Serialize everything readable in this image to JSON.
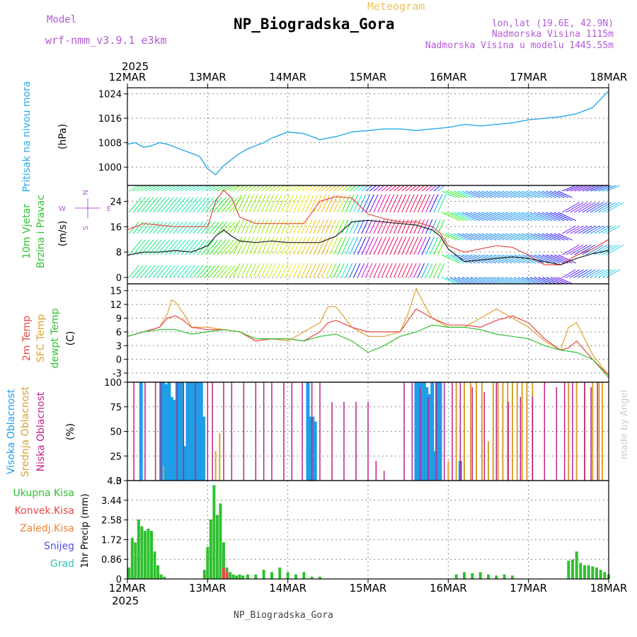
{
  "header": {
    "model_label": "Model",
    "model_version": "wrf-nmm_v3.9.1 e3km",
    "meteogram_label": "Meteogram",
    "station_title": "NP_Biogradska_Gora",
    "coords": "lon,lat (19.6E, 42.9N)",
    "elevation": "Nadmorska Visina 1115m",
    "model_elevation": "Nadmorska Visina u modelu 1445.55m",
    "footer_title": "NP_Biogradska_Gora",
    "watermark": "made by Angel"
  },
  "colors": {
    "pressure": "#29a9e6",
    "wind_speed": "#222222",
    "wind_gust": "#e84545",
    "t2m": "#e84545",
    "sfc": "#e0a030",
    "dewpt": "#30c030",
    "high_cloud": "#1e9ee6",
    "mid_cloud": "#d8a030",
    "low_cloud": "#c0208a",
    "total_precip": "#30c030",
    "conv_precip": "#e84545",
    "frz_precip": "#f08030",
    "snow": "#5050e0",
    "grad": "#30c0b0",
    "ylabel_purple": "#b25bd6"
  },
  "chart_data": [
    {
      "type": "line",
      "id": "pressure",
      "ylabel_name": "Pritisak na nivou mora",
      "ylabel_unit": "(hPa)",
      "year_label": "2025",
      "x_labels": [
        "12MAR",
        "13MAR",
        "14MAR",
        "15MAR",
        "16MAR",
        "17MAR",
        "18MAR"
      ],
      "ylim": [
        994,
        1026
      ],
      "yticks": [
        1000,
        1008,
        1016,
        1024
      ],
      "series": [
        {
          "name": "MSLP",
          "x": [
            0,
            0.1,
            0.2,
            0.3,
            0.4,
            0.5,
            0.6,
            0.7,
            0.8,
            0.9,
            1.0,
            1.1,
            1.2,
            1.3,
            1.4,
            1.5,
            1.6,
            1.7,
            1.8,
            1.9,
            2.0,
            2.2,
            2.4,
            2.6,
            2.8,
            3.0,
            3.2,
            3.4,
            3.6,
            3.8,
            4.0,
            4.2,
            4.4,
            4.6,
            4.8,
            5.0,
            5.2,
            5.4,
            5.6,
            5.8,
            6.0
          ],
          "values": [
            1007.5,
            1008.0,
            1006.5,
            1007.0,
            1008.0,
            1007.5,
            1006.5,
            1005.5,
            1004.5,
            1003.5,
            999.5,
            997.5,
            1000.5,
            1002.5,
            1004.5,
            1006.0,
            1007.0,
            1008.0,
            1009.5,
            1010.5,
            1011.5,
            1011.0,
            1009.0,
            1010.0,
            1011.5,
            1012.0,
            1012.5,
            1012.5,
            1012.0,
            1012.5,
            1013.0,
            1014.0,
            1013.5,
            1014.0,
            1014.5,
            1015.5,
            1016.0,
            1016.5,
            1017.5,
            1019.5,
            1025.0
          ]
        }
      ]
    },
    {
      "type": "line",
      "id": "wind",
      "ylabel_name1": "10m Vjetar",
      "ylabel_name2": "Brzina i Pravac",
      "ylabel_unit": "(m/s)",
      "compass": {
        "n": "N",
        "s": "S",
        "w": "W",
        "e": "E"
      },
      "ylim": [
        -2,
        29
      ],
      "yticks": [
        0,
        8,
        16,
        24
      ],
      "series": [
        {
          "name": "Speed",
          "x": [
            0,
            0.2,
            0.4,
            0.6,
            0.8,
            0.9,
            1.0,
            1.1,
            1.2,
            1.3,
            1.4,
            1.6,
            1.8,
            2.0,
            2.2,
            2.4,
            2.6,
            2.8,
            3.0,
            3.2,
            3.4,
            3.6,
            3.8,
            3.9,
            4.0,
            4.2,
            4.4,
            4.6,
            4.8,
            5.0,
            5.2,
            5.4,
            5.6,
            5.8,
            6.0
          ],
          "values": [
            7,
            8,
            8,
            8.5,
            8,
            9,
            10,
            13,
            15,
            13,
            11.5,
            11,
            11.5,
            11,
            11,
            11,
            13,
            17.5,
            18,
            17.5,
            17,
            16.5,
            15,
            13,
            9,
            5,
            5.5,
            6,
            6.5,
            6,
            5,
            4,
            6,
            7.5,
            8.5
          ]
        },
        {
          "name": "Gust",
          "x": [
            0,
            0.2,
            0.4,
            0.6,
            0.8,
            1.0,
            1.1,
            1.2,
            1.3,
            1.4,
            1.6,
            1.8,
            2.0,
            2.2,
            2.4,
            2.6,
            2.8,
            3.0,
            3.2,
            3.4,
            3.6,
            3.8,
            3.9,
            4.0,
            4.2,
            4.4,
            4.6,
            4.8,
            5.0,
            5.2,
            5.4,
            5.6,
            5.8,
            6.0
          ],
          "values": [
            15,
            17,
            16.5,
            16,
            16,
            16,
            24,
            27.5,
            25,
            19,
            17,
            17,
            17,
            17,
            24,
            25.5,
            25,
            20,
            18.5,
            17.5,
            17.5,
            16,
            14,
            10,
            8,
            9,
            10,
            9.5,
            7,
            4,
            4,
            7,
            9,
            12
          ]
        }
      ]
    },
    {
      "type": "line",
      "id": "temp",
      "ylabel_name1": "2m Temp",
      "ylabel_name2": "SFC Temp",
      "ylabel_name3": "dewpt Temp",
      "ylabel_unit": "(C)",
      "ylim": [
        -5,
        16.5
      ],
      "yticks": [
        -3,
        0,
        3,
        6,
        9,
        12,
        15
      ],
      "series": [
        {
          "name": "2m Temp",
          "x": [
            0,
            0.2,
            0.4,
            0.5,
            0.6,
            0.7,
            0.8,
            1.0,
            1.2,
            1.4,
            1.6,
            1.8,
            2.0,
            2.2,
            2.4,
            2.5,
            2.6,
            2.8,
            3.0,
            3.2,
            3.4,
            3.5,
            3.6,
            3.8,
            4.0,
            4.2,
            4.4,
            4.6,
            4.8,
            5.0,
            5.2,
            5.4,
            5.5,
            5.6,
            5.8,
            6.0
          ],
          "values": [
            5,
            6,
            7,
            9,
            9.5,
            8.5,
            7,
            6.5,
            6.5,
            6,
            4,
            4.5,
            4.5,
            4,
            6,
            8,
            8.5,
            7,
            6,
            6,
            6,
            8.5,
            11,
            9,
            7.5,
            7.5,
            7,
            8.5,
            9.5,
            8,
            4.5,
            2,
            2.5,
            4,
            0,
            -3.5
          ]
        },
        {
          "name": "SFC Temp",
          "x": [
            0,
            0.2,
            0.4,
            0.5,
            0.55,
            0.6,
            0.7,
            0.8,
            1.0,
            1.2,
            1.4,
            1.6,
            1.8,
            2.0,
            2.2,
            2.4,
            2.5,
            2.6,
            2.8,
            3.0,
            3.2,
            3.4,
            3.5,
            3.6,
            3.7,
            3.8,
            4.0,
            4.2,
            4.4,
            4.6,
            4.8,
            5.0,
            5.2,
            5.4,
            5.5,
            5.6,
            5.8,
            6.0
          ],
          "values": [
            5,
            6,
            7,
            10,
            13,
            12.5,
            10,
            7,
            7,
            6.5,
            6,
            4,
            4.5,
            4,
            6,
            8,
            11.5,
            11.5,
            7,
            5,
            5,
            6,
            10,
            15.5,
            12,
            9,
            7,
            7,
            9,
            11,
            9,
            7,
            4,
            2,
            7,
            8,
            1,
            -3.5
          ]
        },
        {
          "name": "Dewpt",
          "x": [
            0,
            0.2,
            0.4,
            0.6,
            0.8,
            1.0,
            1.2,
            1.4,
            1.6,
            1.8,
            2.0,
            2.2,
            2.4,
            2.6,
            2.8,
            3.0,
            3.2,
            3.4,
            3.6,
            3.8,
            4.0,
            4.2,
            4.4,
            4.6,
            4.8,
            5.0,
            5.2,
            5.4,
            5.6,
            5.8,
            6.0
          ],
          "values": [
            5,
            6,
            6.5,
            6.5,
            5.5,
            6,
            6.5,
            6,
            4.5,
            4.5,
            4.5,
            4,
            5,
            5.5,
            4,
            1.5,
            3,
            5,
            6,
            7.5,
            7,
            7,
            6.5,
            5.5,
            5,
            4.5,
            3,
            2,
            1.5,
            0,
            -4
          ]
        }
      ]
    },
    {
      "type": "bar",
      "id": "cloud",
      "ylabel_name1": "Visoka Oblacnost",
      "ylabel_name2": "Srednja Oblacnost",
      "ylabel_name3": "Niska Oblacnost",
      "ylabel_unit": "(%)",
      "ylim": [
        0,
        100
      ],
      "yticks": [
        0,
        25,
        50,
        75,
        100
      ],
      "series": [
        {
          "name": "Visoka",
          "x": [
            0.17,
            0.42,
            0.45,
            0.48,
            0.52,
            0.55,
            0.58,
            0.62,
            0.65,
            0.68,
            0.72,
            0.75,
            0.78,
            0.82,
            0.85,
            0.88,
            0.92,
            0.95,
            2.25,
            2.28,
            2.31,
            2.34,
            3.6,
            3.63,
            3.66,
            3.7,
            3.73,
            3.76,
            3.8,
            3.83,
            3.86,
            3.9,
            4.15
          ],
          "values": [
            100,
            100,
            100,
            98,
            100,
            85,
            82,
            100,
            100,
            100,
            35,
            100,
            100,
            100,
            100,
            100,
            100,
            65,
            100,
            65,
            65,
            60,
            100,
            100,
            100,
            100,
            95,
            88,
            100,
            30,
            100,
            100,
            20
          ]
        },
        {
          "name": "Srednja",
          "x": [
            0.45,
            1.1,
            1.15,
            4.0,
            4.1,
            4.2,
            4.28,
            4.35,
            4.42,
            4.5,
            4.56,
            4.62,
            4.68,
            4.74,
            4.8,
            4.86,
            4.92,
            4.98,
            5.05,
            5.5,
            5.6,
            5.7,
            5.8,
            5.88,
            5.92
          ],
          "values": [
            15,
            30,
            48,
            20,
            100,
            100,
            100,
            100,
            100,
            40,
            100,
            100,
            100,
            100,
            100,
            100,
            100,
            100,
            100,
            100,
            100,
            100,
            100,
            100,
            100
          ]
        },
        {
          "name": "Niska",
          "x": [
            0.08,
            0.22,
            0.35,
            0.42,
            0.62,
            0.7,
            0.85,
            1.0,
            1.06,
            1.2,
            1.3,
            1.45,
            1.6,
            1.7,
            1.8,
            1.95,
            2.05,
            2.18,
            2.3,
            2.4,
            2.55,
            2.7,
            2.85,
            3.0,
            3.1,
            3.2,
            3.45,
            3.55,
            3.65,
            3.75,
            3.85,
            3.95,
            4.05,
            4.15,
            4.3,
            4.45,
            4.6,
            4.75,
            4.9,
            5.05,
            5.2,
            5.35,
            5.45,
            5.55,
            5.7,
            5.78,
            5.86
          ],
          "values": [
            100,
            100,
            100,
            100,
            100,
            100,
            100,
            100,
            100,
            100,
            100,
            100,
            100,
            100,
            100,
            100,
            100,
            100,
            100,
            100,
            80,
            80,
            80,
            80,
            20,
            10,
            100,
            100,
            95,
            85,
            100,
            100,
            100,
            100,
            95,
            90,
            100,
            80,
            85,
            85,
            100,
            95,
            100,
            100,
            100,
            95,
            100
          ]
        }
      ]
    },
    {
      "type": "bar",
      "id": "precip",
      "ylabel_name1": "Ukupna Kisa",
      "ylabel_name2": "Konvek.Kisa",
      "ylabel_name3": "Zaledj.Kisa",
      "ylabel_name4": "Snijeg",
      "ylabel_name5": "Grad",
      "ylabel_unit": "1hr Precip (mm)",
      "ylim": [
        0,
        4.3
      ],
      "yticks": [
        0,
        0.86,
        1.72,
        2.58,
        3.44,
        4.3
      ],
      "x_labels": [
        "12MAR",
        "13MAR",
        "14MAR",
        "15MAR",
        "16MAR",
        "17MAR",
        "18MAR"
      ],
      "year_label": "2025",
      "series": [
        {
          "name": "Ukupna",
          "x": [
            0.02,
            0.06,
            0.1,
            0.14,
            0.18,
            0.22,
            0.26,
            0.3,
            0.34,
            0.38,
            0.42,
            0.46,
            0.96,
            1.0,
            1.04,
            1.08,
            1.12,
            1.16,
            1.2,
            1.24,
            1.28,
            1.32,
            1.36,
            1.4,
            1.44,
            1.5,
            1.6,
            1.7,
            1.8,
            1.9,
            2.0,
            2.1,
            2.2,
            2.3,
            2.4,
            4.1,
            4.2,
            4.3,
            4.4,
            4.5,
            4.6,
            4.7,
            4.8,
            5.5,
            5.55,
            5.6,
            5.65,
            5.7,
            5.75,
            5.8,
            5.85,
            5.9,
            5.95,
            6.0
          ],
          "values": [
            0.5,
            1.8,
            1.6,
            2.6,
            2.3,
            2.1,
            2.2,
            2.1,
            1.2,
            0.6,
            0.2,
            0.1,
            0.4,
            1.4,
            2.6,
            4.1,
            2.8,
            3.3,
            1.6,
            0.5,
            0.3,
            0.2,
            0.15,
            0.2,
            0.15,
            0.2,
            0.2,
            0.4,
            0.3,
            0.5,
            0.3,
            0.2,
            0.3,
            0.1,
            0.1,
            0.2,
            0.3,
            0.25,
            0.3,
            0.2,
            0.15,
            0.2,
            0.15,
            0.8,
            0.85,
            1.2,
            0.7,
            0.6,
            0.6,
            0.55,
            0.5,
            0.4,
            0.3,
            0.2
          ]
        },
        {
          "name": "Konvek",
          "x": [
            1.2,
            1.24
          ],
          "values": [
            0.5,
            0.3
          ]
        }
      ]
    }
  ]
}
